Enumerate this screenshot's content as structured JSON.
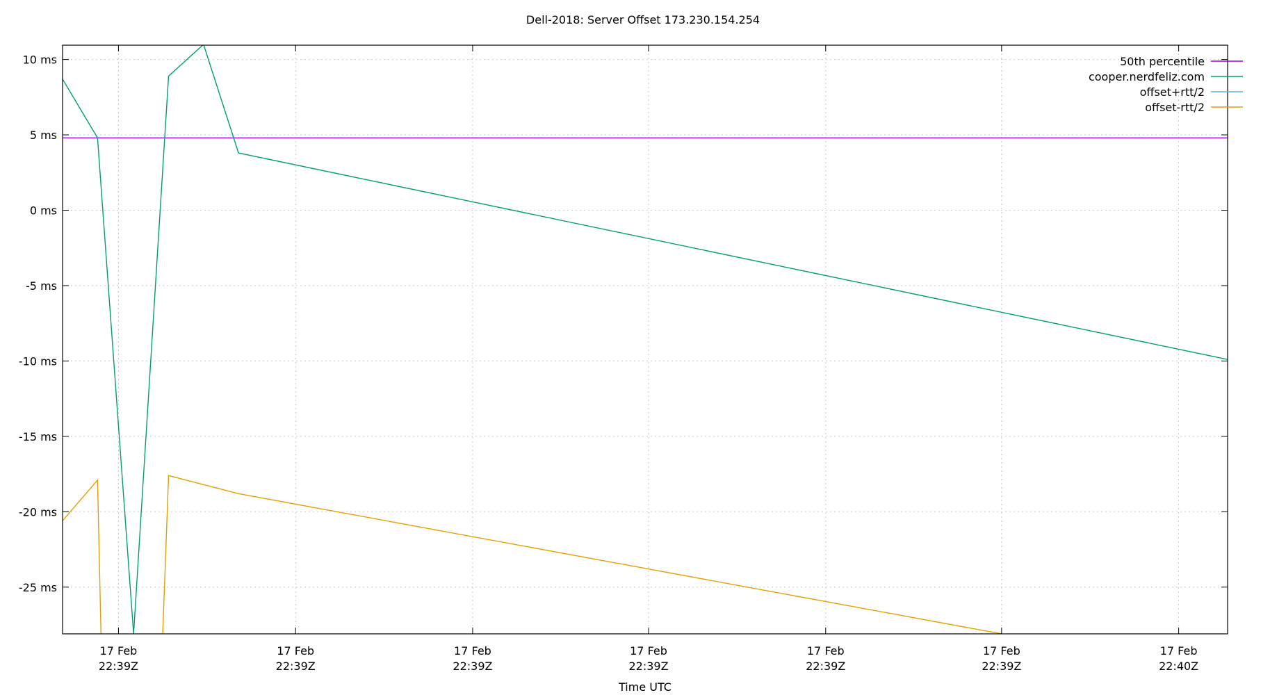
{
  "chart_data": {
    "type": "line",
    "title": "Dell-2018: Server Offset 173.230.154.254",
    "xlabel": "Time UTC",
    "ylabel": "",
    "ylim": [
      -28.1,
      10.95
    ],
    "xlim": [
      0,
      100
    ],
    "grid": true,
    "legend_position": "top-right",
    "y_ticks": [
      {
        "value": 10,
        "label": "10 ms"
      },
      {
        "value": 5,
        "label": "5 ms"
      },
      {
        "value": 0,
        "label": "0 ms"
      },
      {
        "value": -5,
        "label": "-5 ms"
      },
      {
        "value": -10,
        "label": "-10 ms"
      },
      {
        "value": -15,
        "label": "-15 ms"
      },
      {
        "value": -20,
        "label": "-20 ms"
      },
      {
        "value": -25,
        "label": "-25 ms"
      }
    ],
    "x_ticks": [
      {
        "x": 4.8,
        "date": "17 Feb",
        "time": "22:39Z"
      },
      {
        "x": 20.0,
        "date": "17 Feb",
        "time": "22:39Z"
      },
      {
        "x": 35.2,
        "date": "17 Feb",
        "time": "22:39Z"
      },
      {
        "x": 50.3,
        "date": "17 Feb",
        "time": "22:39Z"
      },
      {
        "x": 65.5,
        "date": "17 Feb",
        "time": "22:39Z"
      },
      {
        "x": 80.6,
        "date": "17 Feb",
        "time": "22:39Z"
      },
      {
        "x": 95.8,
        "date": "17 Feb",
        "time": "22:40Z"
      }
    ],
    "series": [
      {
        "name": "50th percentile",
        "color": "#9400d3",
        "points": [
          [
            0,
            4.8
          ],
          [
            100,
            4.8
          ]
        ]
      },
      {
        "name": "cooper.nerdfeliz.com",
        "color": "#009e73",
        "points": [
          [
            0,
            8.7
          ],
          [
            3.0,
            4.8
          ],
          [
            6.1,
            -28.1
          ],
          [
            9.1,
            8.9
          ],
          [
            12.1,
            11.0
          ],
          [
            15.1,
            3.8
          ],
          [
            100,
            -9.9
          ]
        ]
      },
      {
        "name": "offset+rtt/2",
        "color": "#56b4e9",
        "points": []
      },
      {
        "name": "offset-rtt/2",
        "color": "#e69f00",
        "points": [
          [
            0,
            -20.6
          ],
          [
            3.0,
            -17.9
          ],
          [
            3.3,
            -28.1
          ],
          null,
          [
            8.6,
            -28.1
          ],
          [
            9.1,
            -17.6
          ],
          [
            15.1,
            -18.8
          ],
          [
            80.6,
            -28.1
          ]
        ]
      }
    ]
  }
}
